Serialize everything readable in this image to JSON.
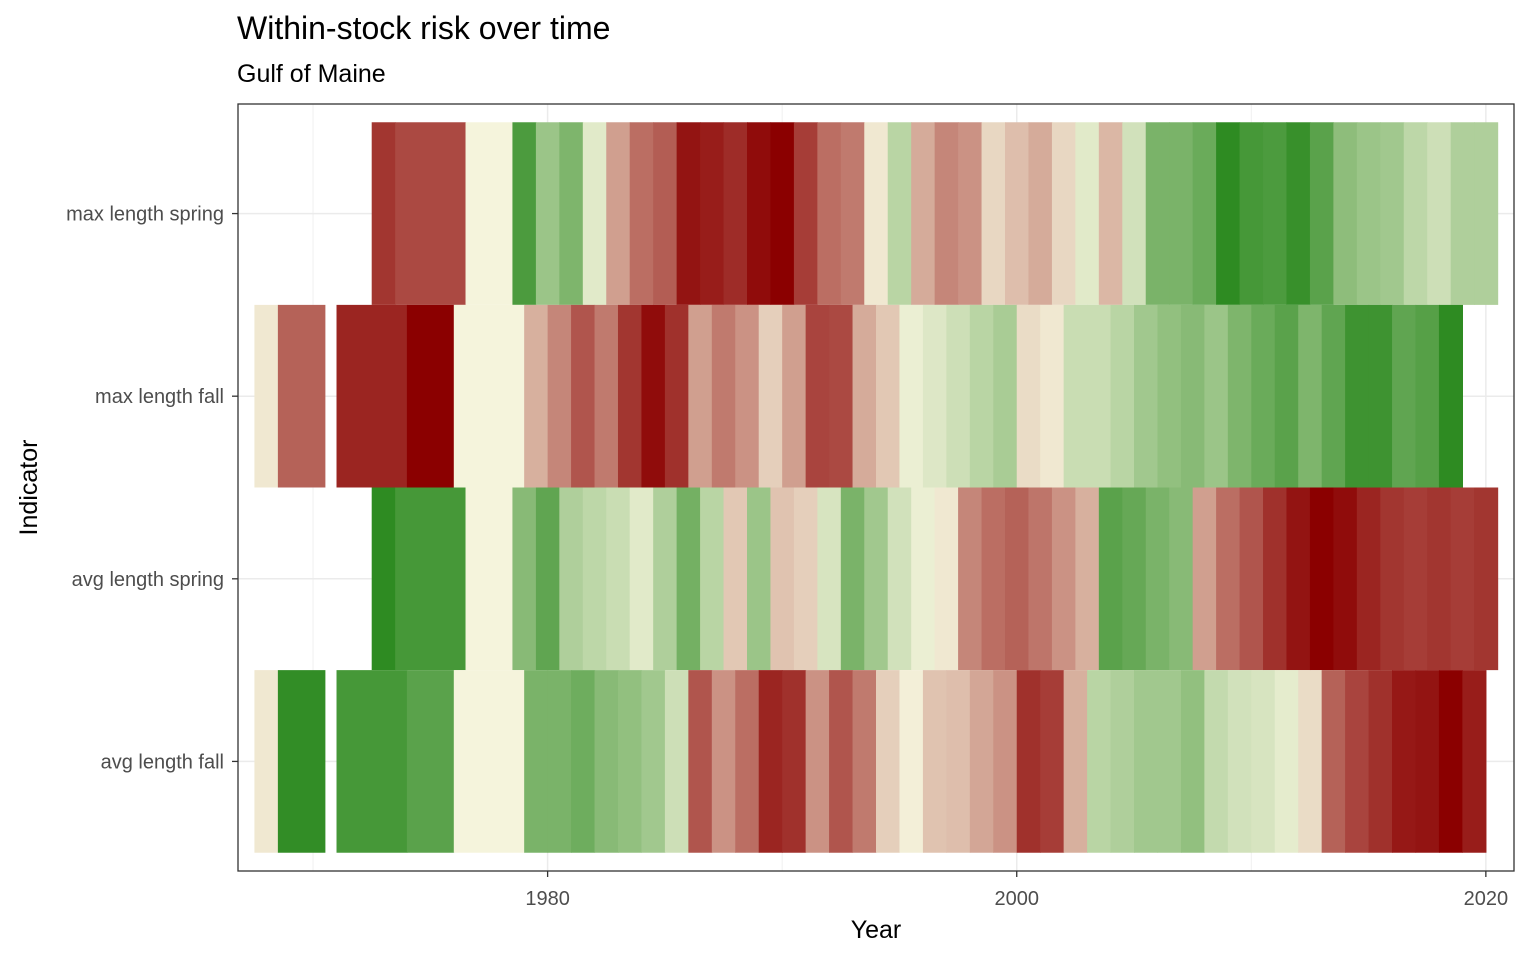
{
  "chart_data": {
    "type": "heatmap",
    "title": "Within-stock risk over time",
    "subtitle": "Gulf of Maine",
    "xlabel": "Year",
    "ylabel": "Indicator",
    "xlim": [
      1966.8,
      2021.2
    ],
    "x_ticks": [
      1980,
      2000,
      2020
    ],
    "grid": true,
    "legend": "none",
    "colors": {
      "low": "#2e8b22",
      "mid": "#f5f4dc",
      "high": "#8b0000"
    },
    "series": [
      {
        "name": "max length spring",
        "cells": [
          {
            "x": 1973,
            "width": 1,
            "risk": 0.78
          },
          {
            "x": 1975,
            "width": 3,
            "risk": 0.7
          },
          {
            "x": 1977.5,
            "width": 2,
            "risk": 0.0
          },
          {
            "x": 1979,
            "width": 1,
            "risk": -0.85
          },
          {
            "x": 1980,
            "width": 1,
            "risk": -0.45
          },
          {
            "x": 1981,
            "width": 1,
            "risk": -0.6
          },
          {
            "x": 1982,
            "width": 1,
            "risk": -0.1
          },
          {
            "x": 1983,
            "width": 1,
            "risk": 0.35
          },
          {
            "x": 1984,
            "width": 1,
            "risk": 0.55
          },
          {
            "x": 1985,
            "width": 1,
            "risk": 0.62
          },
          {
            "x": 1986,
            "width": 1,
            "risk": 0.92
          },
          {
            "x": 1987,
            "width": 1,
            "risk": 0.88
          },
          {
            "x": 1988,
            "width": 1,
            "risk": 0.82
          },
          {
            "x": 1989,
            "width": 1,
            "risk": 0.95
          },
          {
            "x": 1990,
            "width": 1,
            "risk": 1.0
          },
          {
            "x": 1991,
            "width": 1,
            "risk": 0.75
          },
          {
            "x": 1992,
            "width": 1,
            "risk": 0.55
          },
          {
            "x": 1993,
            "width": 1,
            "risk": 0.5
          },
          {
            "x": 1994,
            "width": 1,
            "risk": 0.05
          },
          {
            "x": 1995,
            "width": 1,
            "risk": -0.3
          },
          {
            "x": 1996,
            "width": 1,
            "risk": 0.3
          },
          {
            "x": 1997,
            "width": 1,
            "risk": 0.45
          },
          {
            "x": 1998,
            "width": 1,
            "risk": 0.4
          },
          {
            "x": 1999,
            "width": 1,
            "risk": 0.12
          },
          {
            "x": 2000,
            "width": 1,
            "risk": 0.22
          },
          {
            "x": 2001,
            "width": 1,
            "risk": 0.3
          },
          {
            "x": 2002,
            "width": 1,
            "risk": 0.12
          },
          {
            "x": 2003,
            "width": 1,
            "risk": -0.1
          },
          {
            "x": 2004,
            "width": 1,
            "risk": 0.25
          },
          {
            "x": 2005,
            "width": 1,
            "risk": -0.18
          },
          {
            "x": 2006,
            "width": 1,
            "risk": -0.62
          },
          {
            "x": 2007,
            "width": 1,
            "risk": -0.62
          },
          {
            "x": 2008,
            "width": 1,
            "risk": -0.7
          },
          {
            "x": 2009,
            "width": 1,
            "risk": -1.0
          },
          {
            "x": 2010,
            "width": 1,
            "risk": -0.88
          },
          {
            "x": 2011,
            "width": 1,
            "risk": -0.85
          },
          {
            "x": 2012,
            "width": 1,
            "risk": -0.95
          },
          {
            "x": 2013,
            "width": 1,
            "risk": -0.78
          },
          {
            "x": 2014,
            "width": 1,
            "risk": -0.52
          },
          {
            "x": 2015,
            "width": 1,
            "risk": -0.45
          },
          {
            "x": 2016,
            "width": 1,
            "risk": -0.42
          },
          {
            "x": 2017,
            "width": 1,
            "risk": -0.28
          },
          {
            "x": 2018,
            "width": 1,
            "risk": -0.2
          },
          {
            "x": 2019,
            "width": 1,
            "risk": -0.35
          },
          {
            "x": 2020,
            "width": 1,
            "risk": -0.35
          }
        ]
      },
      {
        "name": "max length fall",
        "cells": [
          {
            "x": 1968,
            "width": 1,
            "risk": 0.05
          },
          {
            "x": 1969.5,
            "width": 2,
            "risk": 0.6
          },
          {
            "x": 1972.5,
            "width": 3,
            "risk": 0.85
          },
          {
            "x": 1975,
            "width": 2,
            "risk": 1.0
          },
          {
            "x": 1977.5,
            "width": 3,
            "risk": 0.0
          },
          {
            "x": 1979.5,
            "width": 1,
            "risk": 0.28
          },
          {
            "x": 1980.5,
            "width": 1,
            "risk": 0.45
          },
          {
            "x": 1981.5,
            "width": 1,
            "risk": 0.65
          },
          {
            "x": 1982.5,
            "width": 1,
            "risk": 0.5
          },
          {
            "x": 1983.5,
            "width": 1,
            "risk": 0.78
          },
          {
            "x": 1984.5,
            "width": 1,
            "risk": 0.95
          },
          {
            "x": 1985.5,
            "width": 1,
            "risk": 0.8
          },
          {
            "x": 1986.5,
            "width": 1,
            "risk": 0.35
          },
          {
            "x": 1987.5,
            "width": 1,
            "risk": 0.5
          },
          {
            "x": 1988.5,
            "width": 1,
            "risk": 0.4
          },
          {
            "x": 1989.5,
            "width": 1,
            "risk": 0.15
          },
          {
            "x": 1990.5,
            "width": 1,
            "risk": 0.35
          },
          {
            "x": 1991.5,
            "width": 1,
            "risk": 0.72
          },
          {
            "x": 1992.5,
            "width": 1,
            "risk": 0.7
          },
          {
            "x": 1993.5,
            "width": 1,
            "risk": 0.3
          },
          {
            "x": 1994.5,
            "width": 1,
            "risk": 0.18
          },
          {
            "x": 1995.5,
            "width": 1,
            "risk": -0.05
          },
          {
            "x": 1996.5,
            "width": 1,
            "risk": -0.12
          },
          {
            "x": 1997.5,
            "width": 1,
            "risk": -0.2
          },
          {
            "x": 1998.5,
            "width": 1,
            "risk": -0.3
          },
          {
            "x": 1999.5,
            "width": 1,
            "risk": -0.38
          },
          {
            "x": 2000.5,
            "width": 1,
            "risk": 0.1
          },
          {
            "x": 2001.5,
            "width": 1,
            "risk": 0.05
          },
          {
            "x": 2002.5,
            "width": 1,
            "risk": -0.22
          },
          {
            "x": 2003.5,
            "width": 1,
            "risk": -0.22
          },
          {
            "x": 2004.5,
            "width": 1,
            "risk": -0.3
          },
          {
            "x": 2005.5,
            "width": 1,
            "risk": -0.42
          },
          {
            "x": 2006.5,
            "width": 1,
            "risk": -0.5
          },
          {
            "x": 2007.5,
            "width": 1,
            "risk": -0.55
          },
          {
            "x": 2008.5,
            "width": 1,
            "risk": -0.45
          },
          {
            "x": 2009.5,
            "width": 1,
            "risk": -0.6
          },
          {
            "x": 2010.5,
            "width": 1,
            "risk": -0.7
          },
          {
            "x": 2011.5,
            "width": 1,
            "risk": -0.78
          },
          {
            "x": 2012.5,
            "width": 1,
            "risk": -0.6
          },
          {
            "x": 2013.5,
            "width": 1,
            "risk": -0.75
          },
          {
            "x": 2014.5,
            "width": 1,
            "risk": -0.92
          },
          {
            "x": 2015.5,
            "width": 1,
            "risk": -0.92
          },
          {
            "x": 2016.5,
            "width": 1,
            "risk": -0.75
          },
          {
            "x": 2017.5,
            "width": 1,
            "risk": -0.8
          },
          {
            "x": 2018.5,
            "width": 1,
            "risk": -1.0
          }
        ]
      },
      {
        "name": "avg length spring",
        "cells": [
          {
            "x": 1973,
            "width": 1,
            "risk": -1.0
          },
          {
            "x": 1975,
            "width": 3,
            "risk": -0.88
          },
          {
            "x": 1977.5,
            "width": 2,
            "risk": 0.0
          },
          {
            "x": 1979,
            "width": 1,
            "risk": -0.55
          },
          {
            "x": 1980,
            "width": 1,
            "risk": -0.75
          },
          {
            "x": 1981,
            "width": 1,
            "risk": -0.35
          },
          {
            "x": 1982,
            "width": 1,
            "risk": -0.28
          },
          {
            "x": 1983,
            "width": 1,
            "risk": -0.22
          },
          {
            "x": 1984,
            "width": 1,
            "risk": -0.1
          },
          {
            "x": 1985,
            "width": 1,
            "risk": -0.35
          },
          {
            "x": 1986,
            "width": 1,
            "risk": -0.65
          },
          {
            "x": 1987,
            "width": 1,
            "risk": -0.3
          },
          {
            "x": 1988,
            "width": 1,
            "risk": 0.18
          },
          {
            "x": 1989,
            "width": 1,
            "risk": -0.45
          },
          {
            "x": 1990,
            "width": 1,
            "risk": 0.2
          },
          {
            "x": 1991,
            "width": 1,
            "risk": 0.15
          },
          {
            "x": 1992,
            "width": 1,
            "risk": -0.15
          },
          {
            "x": 1993,
            "width": 1,
            "risk": -0.62
          },
          {
            "x": 1994,
            "width": 1,
            "risk": -0.42
          },
          {
            "x": 1995,
            "width": 1,
            "risk": -0.18
          },
          {
            "x": 1996,
            "width": 1,
            "risk": -0.05
          },
          {
            "x": 1997,
            "width": 1,
            "risk": 0.05
          },
          {
            "x": 1998,
            "width": 1,
            "risk": 0.45
          },
          {
            "x": 1999,
            "width": 1,
            "risk": 0.55
          },
          {
            "x": 2000,
            "width": 1,
            "risk": 0.6
          },
          {
            "x": 2001,
            "width": 1,
            "risk": 0.52
          },
          {
            "x": 2002,
            "width": 1,
            "risk": 0.4
          },
          {
            "x": 2003,
            "width": 1,
            "risk": 0.28
          },
          {
            "x": 2004,
            "width": 1,
            "risk": -0.78
          },
          {
            "x": 2005,
            "width": 1,
            "risk": -0.72
          },
          {
            "x": 2006,
            "width": 1,
            "risk": -0.62
          },
          {
            "x": 2007,
            "width": 1,
            "risk": -0.55
          },
          {
            "x": 2008,
            "width": 1,
            "risk": 0.35
          },
          {
            "x": 2009,
            "width": 1,
            "risk": 0.55
          },
          {
            "x": 2010,
            "width": 1,
            "risk": 0.65
          },
          {
            "x": 2011,
            "width": 1,
            "risk": 0.8
          },
          {
            "x": 2012,
            "width": 1,
            "risk": 0.92
          },
          {
            "x": 2013,
            "width": 1,
            "risk": 1.0
          },
          {
            "x": 2014,
            "width": 1,
            "risk": 0.95
          },
          {
            "x": 2015,
            "width": 1,
            "risk": 0.85
          },
          {
            "x": 2016,
            "width": 1,
            "risk": 0.78
          },
          {
            "x": 2017,
            "width": 1,
            "risk": 0.75
          },
          {
            "x": 2018,
            "width": 1,
            "risk": 0.78
          },
          {
            "x": 2019,
            "width": 1,
            "risk": 0.75
          },
          {
            "x": 2020,
            "width": 1,
            "risk": 0.78
          }
        ]
      },
      {
        "name": "avg length fall",
        "cells": [
          {
            "x": 1968,
            "width": 1,
            "risk": 0.05
          },
          {
            "x": 1969.5,
            "width": 2,
            "risk": -0.98
          },
          {
            "x": 1972.5,
            "width": 3,
            "risk": -0.88
          },
          {
            "x": 1975,
            "width": 2,
            "risk": -0.78
          },
          {
            "x": 1977.5,
            "width": 3,
            "risk": 0.0
          },
          {
            "x": 1979.5,
            "width": 1,
            "risk": -0.62
          },
          {
            "x": 1980.5,
            "width": 1,
            "risk": -0.62
          },
          {
            "x": 1981.5,
            "width": 1,
            "risk": -0.68
          },
          {
            "x": 1982.5,
            "width": 1,
            "risk": -0.55
          },
          {
            "x": 1983.5,
            "width": 1,
            "risk": -0.5
          },
          {
            "x": 1984.5,
            "width": 1,
            "risk": -0.42
          },
          {
            "x": 1985.5,
            "width": 1,
            "risk": -0.2
          },
          {
            "x": 1986.5,
            "width": 1,
            "risk": 0.65
          },
          {
            "x": 1987.5,
            "width": 1,
            "risk": 0.4
          },
          {
            "x": 1988.5,
            "width": 1,
            "risk": 0.55
          },
          {
            "x": 1989.5,
            "width": 1,
            "risk": 0.85
          },
          {
            "x": 1990.5,
            "width": 1,
            "risk": 0.8
          },
          {
            "x": 1991.5,
            "width": 1,
            "risk": 0.4
          },
          {
            "x": 1992.5,
            "width": 1,
            "risk": 0.65
          },
          {
            "x": 1993.5,
            "width": 1,
            "risk": 0.5
          },
          {
            "x": 1994.5,
            "width": 1,
            "risk": 0.15
          },
          {
            "x": 1995.5,
            "width": 1,
            "risk": 0.02
          },
          {
            "x": 1996.5,
            "width": 1,
            "risk": 0.2
          },
          {
            "x": 1997.5,
            "width": 1,
            "risk": 0.22
          },
          {
            "x": 1998.5,
            "width": 1,
            "risk": 0.32
          },
          {
            "x": 1999.5,
            "width": 1,
            "risk": 0.4
          },
          {
            "x": 2000.5,
            "width": 1,
            "risk": 0.8
          },
          {
            "x": 2001.5,
            "width": 1,
            "risk": 0.75
          },
          {
            "x": 2002.5,
            "width": 1,
            "risk": 0.28
          },
          {
            "x": 2003.5,
            "width": 1,
            "risk": -0.3
          },
          {
            "x": 2004.5,
            "width": 1,
            "risk": -0.35
          },
          {
            "x": 2005.5,
            "width": 1,
            "risk": -0.42
          },
          {
            "x": 2006.5,
            "width": 1,
            "risk": -0.42
          },
          {
            "x": 2007.5,
            "width": 1,
            "risk": -0.5
          },
          {
            "x": 2008.5,
            "width": 1,
            "risk": -0.25
          },
          {
            "x": 2009.5,
            "width": 1,
            "risk": -0.18
          },
          {
            "x": 2010.5,
            "width": 1,
            "risk": -0.15
          },
          {
            "x": 2011.5,
            "width": 1,
            "risk": -0.08
          },
          {
            "x": 2012.5,
            "width": 1,
            "risk": 0.1
          },
          {
            "x": 2013.5,
            "width": 1,
            "risk": 0.6
          },
          {
            "x": 2014.5,
            "width": 1,
            "risk": 0.72
          },
          {
            "x": 2015.5,
            "width": 1,
            "risk": 0.8
          },
          {
            "x": 2016.5,
            "width": 1,
            "risk": 0.9
          },
          {
            "x": 2017.5,
            "width": 1,
            "risk": 0.92
          },
          {
            "x": 2018.5,
            "width": 1,
            "risk": 1.0
          },
          {
            "x": 2019.5,
            "width": 1,
            "risk": 0.88
          }
        ]
      }
    ]
  }
}
